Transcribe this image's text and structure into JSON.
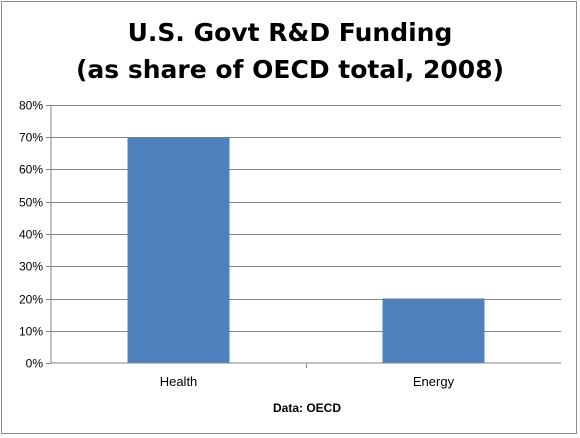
{
  "chart_data": {
    "type": "bar",
    "title_lines": [
      "U.S. Govt R&D Funding",
      "(as share of OECD total, 2008)"
    ],
    "categories": [
      "Health",
      "Energy"
    ],
    "values": [
      0.7,
      0.2
    ],
    "ylim": [
      0,
      0.8
    ],
    "y_ticks": [
      "0%",
      "10%",
      "20%",
      "30%",
      "40%",
      "50%",
      "60%",
      "70%",
      "80%"
    ],
    "xlabel": "Data: OECD",
    "ylabel": "",
    "grid": true,
    "legend": "none",
    "bar_color": "#4f81bd",
    "grid_color": "#868686"
  }
}
